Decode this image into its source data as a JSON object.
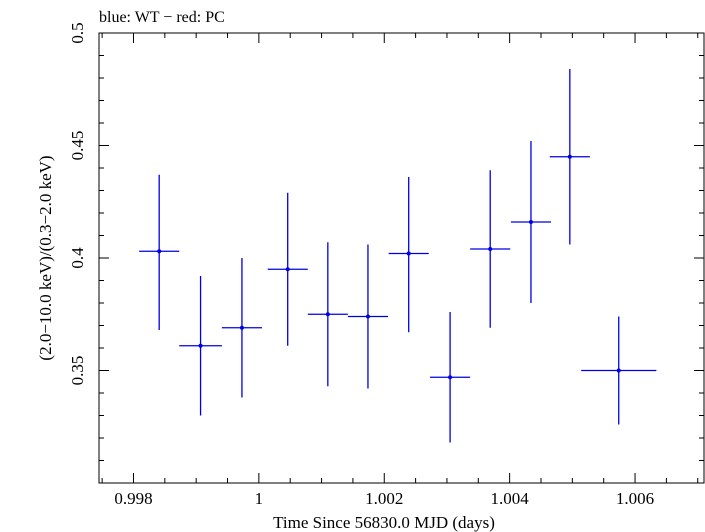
{
  "chart_data": {
    "type": "scatter",
    "title": "blue: WT − red: PC",
    "xlabel": "Time Since 56830.0 MJD (days)",
    "ylabel": "(2.0−10.0 keV)/(0.3−2.0 keV)",
    "xlim": [
      0.99745,
      1.0071
    ],
    "ylim": [
      0.3,
      0.5
    ],
    "x_ticks": [
      {
        "value": 0.998,
        "label": "0.998"
      },
      {
        "value": 1.0,
        "label": "1"
      },
      {
        "value": 1.002,
        "label": "1.002"
      },
      {
        "value": 1.004,
        "label": "1.004"
      },
      {
        "value": 1.006,
        "label": "1.006"
      }
    ],
    "y_ticks": [
      {
        "value": 0.35,
        "label": "0.35"
      },
      {
        "value": 0.4,
        "label": "0.4"
      },
      {
        "value": 0.45,
        "label": "0.45"
      },
      {
        "value": 0.5,
        "label": "0.5"
      }
    ],
    "x_minor_step": 0.0005,
    "y_minor_step": 0.01,
    "grid": false,
    "series": [
      {
        "color": "#0000e6",
        "points": [
          {
            "x": 0.99841,
            "xerr": 0.00032,
            "y": 0.403,
            "yerr_lo": 0.035,
            "yerr_hi": 0.034
          },
          {
            "x": 0.99907,
            "xerr": 0.00034,
            "y": 0.361,
            "yerr_lo": 0.031,
            "yerr_hi": 0.031
          },
          {
            "x": 0.99973,
            "xerr": 0.00032,
            "y": 0.369,
            "yerr_lo": 0.031,
            "yerr_hi": 0.031
          },
          {
            "x": 1.00046,
            "xerr": 0.00032,
            "y": 0.395,
            "yerr_lo": 0.034,
            "yerr_hi": 0.034
          },
          {
            "x": 1.0011,
            "xerr": 0.00032,
            "y": 0.375,
            "yerr_lo": 0.032,
            "yerr_hi": 0.032
          },
          {
            "x": 1.00174,
            "xerr": 0.00032,
            "y": 0.374,
            "yerr_lo": 0.032,
            "yerr_hi": 0.032
          },
          {
            "x": 1.00239,
            "xerr": 0.00032,
            "y": 0.402,
            "yerr_lo": 0.035,
            "yerr_hi": 0.034
          },
          {
            "x": 1.00305,
            "xerr": 0.00032,
            "y": 0.347,
            "yerr_lo": 0.029,
            "yerr_hi": 0.029
          },
          {
            "x": 1.00369,
            "xerr": 0.00032,
            "y": 0.404,
            "yerr_lo": 0.035,
            "yerr_hi": 0.035
          },
          {
            "x": 1.00434,
            "xerr": 0.00032,
            "y": 0.416,
            "yerr_lo": 0.036,
            "yerr_hi": 0.036
          },
          {
            "x": 1.00496,
            "xerr": 0.00032,
            "y": 0.445,
            "yerr_lo": 0.039,
            "yerr_hi": 0.039
          },
          {
            "x": 1.00574,
            "xerr": 0.0006,
            "y": 0.35,
            "yerr_lo": 0.024,
            "yerr_hi": 0.024
          }
        ]
      }
    ]
  }
}
